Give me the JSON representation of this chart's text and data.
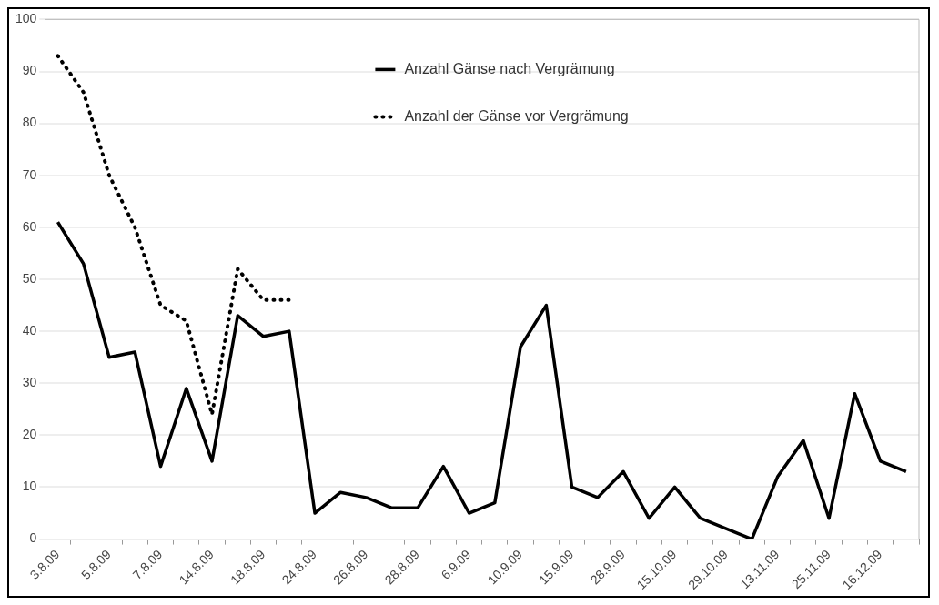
{
  "chart_data": {
    "type": "line",
    "categories": [
      "3.8.09",
      null,
      "5.8.09",
      null,
      "7.8.09",
      null,
      "14.8.09",
      null,
      "18.8.09",
      null,
      "24.8.09",
      null,
      "26.8.09",
      null,
      "28.8.09",
      null,
      "6.9.09",
      null,
      "10.9.09",
      null,
      "15.9.09",
      null,
      "28.9.09",
      null,
      "15.10.09",
      null,
      "29.10.09",
      null,
      "13.11.09",
      null,
      "25.11.09",
      null,
      "16.12.09",
      null
    ],
    "series": [
      {
        "name": "Anzahl Gänse nach Vergrämung",
        "color": "#000000",
        "line_style": "solid",
        "values": [
          61,
          53,
          35,
          36,
          14,
          29,
          15,
          43,
          39,
          40,
          5,
          9,
          8,
          6,
          6,
          14,
          5,
          7,
          37,
          45,
          10,
          8,
          13,
          4,
          10,
          4,
          2,
          0,
          12,
          19,
          4,
          28,
          15,
          13
        ]
      },
      {
        "name": "Anzahl der Gänse vor Vergrämung",
        "color": "#000000",
        "line_style": "dotted",
        "values": [
          93,
          86,
          70,
          60,
          45,
          42,
          24,
          52,
          46,
          46,
          null,
          null,
          null,
          null,
          null,
          null,
          null,
          null,
          null,
          null,
          null,
          null,
          null,
          null,
          null,
          null,
          null,
          null,
          null,
          null,
          null,
          null,
          null,
          null
        ]
      }
    ],
    "ylim": [
      0,
      100
    ],
    "yticks": [
      0,
      10,
      20,
      30,
      40,
      50,
      60,
      70,
      80,
      90,
      100
    ],
    "grid": "y",
    "legend": "top",
    "marker": "none"
  }
}
